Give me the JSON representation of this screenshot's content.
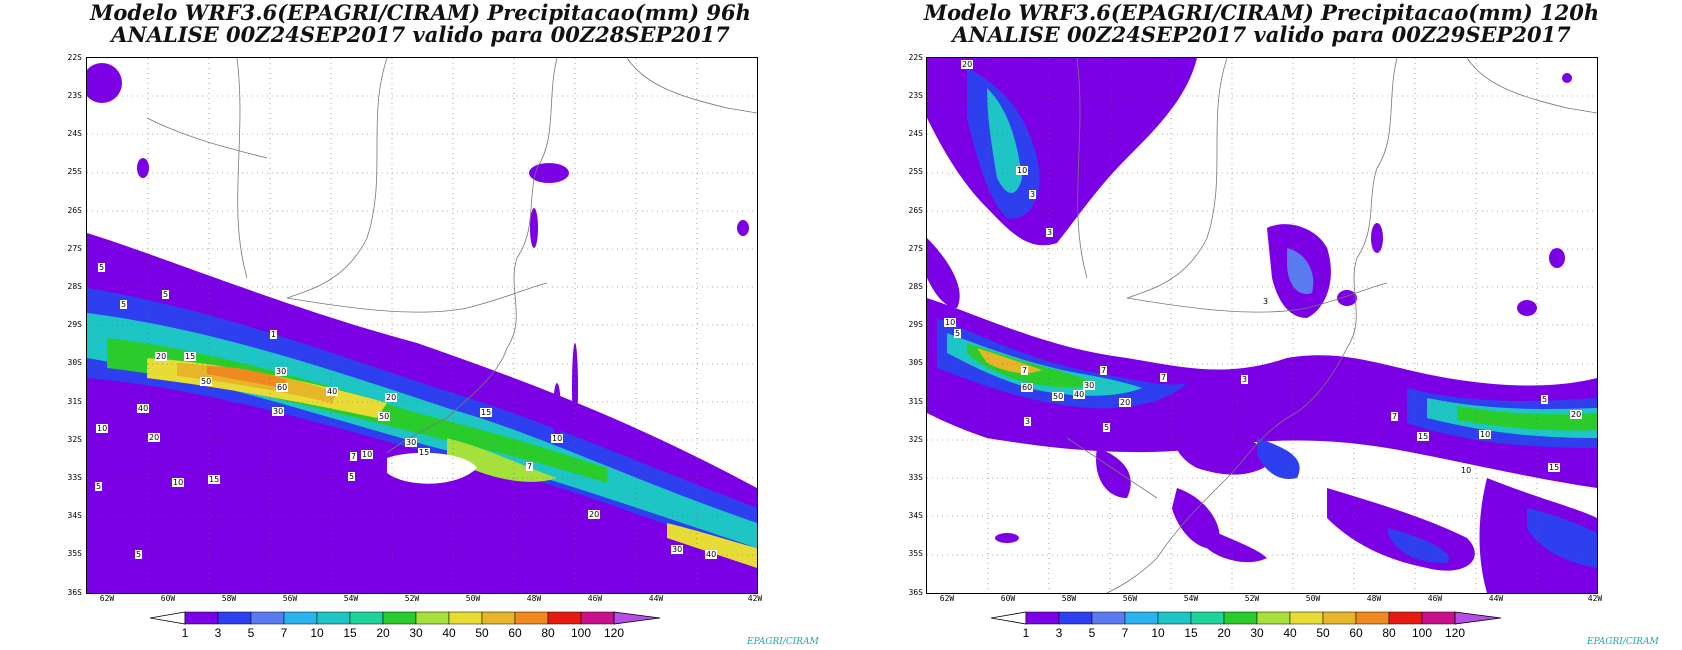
{
  "panels": [
    {
      "title_line1": "Modelo WRF3.6(EPAGRI/CIRAM) Precipitacao(mm) 96h",
      "title_line2": "ANALISE 00Z24SEP2017 valido para 00Z28SEP2017"
    },
    {
      "title_line1": "Modelo WRF3.6(EPAGRI/CIRAM) Precipitacao(mm) 120h",
      "title_line2": "ANALISE 00Z24SEP2017 valido para 00Z29SEP2017"
    }
  ],
  "axes": {
    "lat_labels": [
      "22S",
      "23S",
      "24S",
      "25S",
      "26S",
      "27S",
      "28S",
      "29S",
      "30S",
      "31S",
      "32S",
      "33S",
      "34S",
      "35S",
      "36S"
    ],
    "lon_labels": [
      "62W",
      "60W",
      "58W",
      "56W",
      "54W",
      "52W",
      "50W",
      "48W",
      "46W",
      "44W",
      "42W"
    ]
  },
  "colorbar": {
    "labels": [
      "1",
      "3",
      "5",
      "7",
      "10",
      "15",
      "20",
      "30",
      "40",
      "50",
      "60",
      "80",
      "100",
      "120"
    ],
    "colors": [
      "#ffffff",
      "#7b00e6",
      "#2e3ff0",
      "#5a7cf0",
      "#2ab4ef",
      "#1ec5c5",
      "#1fd39a",
      "#29cc2a",
      "#a6e03a",
      "#e6dc35",
      "#e6b52a",
      "#ef8a1f",
      "#e61c10",
      "#c8108a",
      "#b44ee6"
    ]
  },
  "panel1_contour_labels": [
    "5",
    "5",
    "5",
    "15",
    "20",
    "30",
    "50",
    "60",
    "40",
    "20",
    "50",
    "40",
    "30",
    "10",
    "30",
    "20",
    "15",
    "10",
    "15",
    "10",
    "5",
    "7",
    "5",
    "20",
    "30",
    "40",
    "10",
    "15",
    "7",
    "5",
    "1"
  ],
  "panel2_contour_labels": [
    "20",
    "10",
    "10",
    "3",
    "5",
    "7",
    "3",
    "7",
    "60",
    "30",
    "50",
    "40",
    "20",
    "7",
    "5",
    "3",
    "3",
    "7",
    "15",
    "10",
    "15",
    "10",
    "20",
    "5",
    "3"
  ],
  "brand": "EPAGRI/CIRAM"
}
